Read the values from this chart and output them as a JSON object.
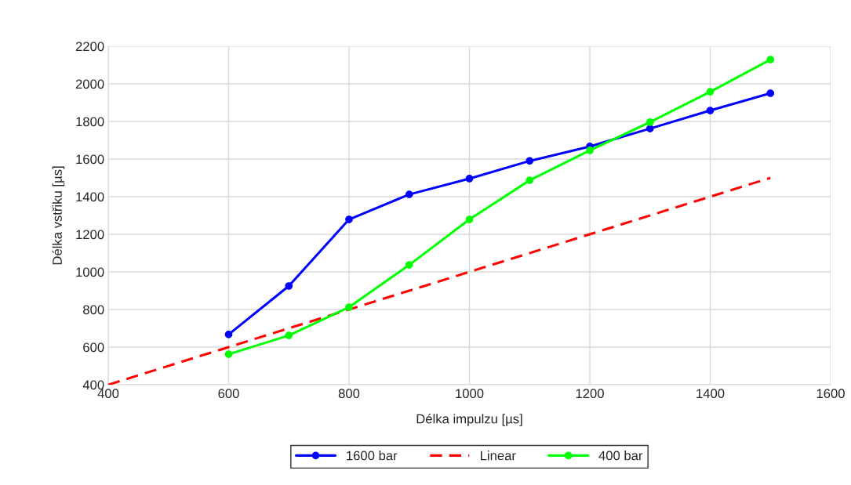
{
  "chart_data": {
    "type": "line",
    "xlabel": "Délka impulzu [µs]",
    "ylabel": "Délka vstřiku [µs]",
    "xlim": [
      400,
      1600
    ],
    "xticks": [
      400,
      600,
      800,
      1000,
      1200,
      1400,
      1600
    ],
    "ylim": [
      400,
      2200
    ],
    "yticks": [
      400,
      600,
      800,
      1000,
      1200,
      1400,
      1600,
      1800,
      2000,
      2200
    ],
    "grid": true,
    "legend": "bottom",
    "series": [
      {
        "name": "1600 bar",
        "color": "#0000ff",
        "marker": "circle",
        "line_style": "solid",
        "x": [
          600,
          700,
          800,
          900,
          1000,
          1100,
          1200,
          1300,
          1400,
          1500
        ],
        "values": [
          667,
          925,
          1279,
          1412,
          1496,
          1590,
          1667,
          1762,
          1858,
          1950
        ]
      },
      {
        "name": "Linear",
        "color": "#ff0000",
        "marker": "none",
        "line_style": "dashed",
        "x": [
          400,
          1500
        ],
        "values": [
          400,
          1500
        ]
      },
      {
        "name": "400 bar",
        "color": "#00ff00",
        "marker": "circle",
        "line_style": "solid",
        "x": [
          600,
          700,
          800,
          900,
          1000,
          1100,
          1200,
          1300,
          1400,
          1500
        ],
        "values": [
          562,
          662,
          812,
          1037,
          1279,
          1487,
          1646,
          1796,
          1958,
          2129
        ]
      }
    ]
  }
}
